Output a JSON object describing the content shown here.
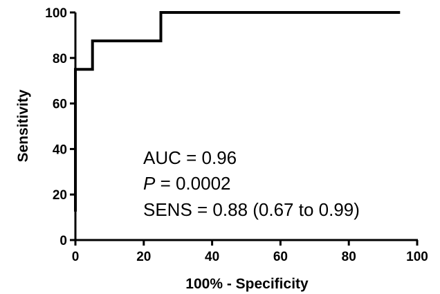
{
  "chart_data": {
    "type": "line",
    "xlabel": "100% - Specificity",
    "ylabel": "Sensitivity",
    "xlim": [
      0,
      100
    ],
    "ylim": [
      0,
      100
    ],
    "x_ticks": [
      "0",
      "20",
      "40",
      "60",
      "80",
      "100"
    ],
    "y_ticks": [
      "0",
      "20",
      "40",
      "60",
      "80",
      "100"
    ],
    "grid": false,
    "series": [
      {
        "color": "#000000",
        "step": true,
        "points": [
          {
            "x": 0,
            "y": 12.5
          },
          {
            "x": 0,
            "y": 75
          },
          {
            "x": 5,
            "y": 75
          },
          {
            "x": 5,
            "y": 87.5
          },
          {
            "x": 25,
            "y": 87.5
          },
          {
            "x": 25,
            "y": 100
          },
          {
            "x": 95,
            "y": 100
          }
        ]
      }
    ],
    "annotations": {
      "auc": "AUC = 0.96",
      "p_label": "P",
      "p_value": " = 0.0002",
      "sens": "SENS = 0.88 (0.67 to 0.99)"
    }
  }
}
